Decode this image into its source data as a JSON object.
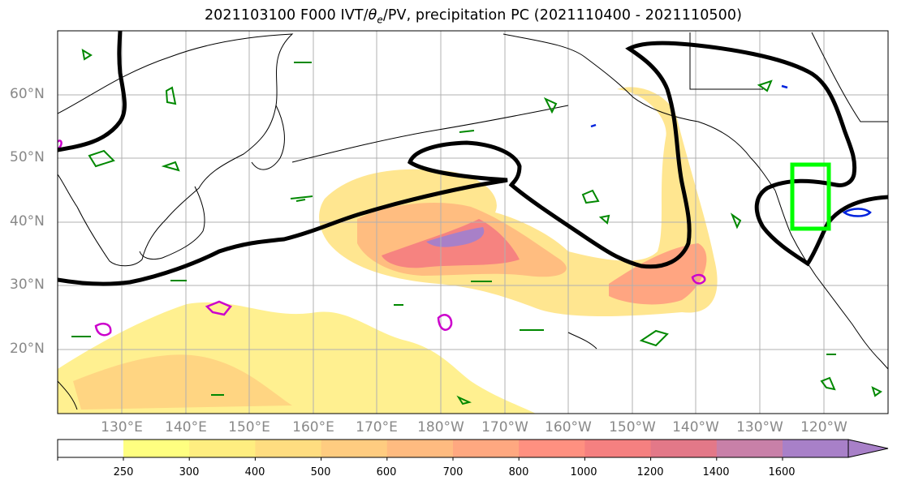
{
  "title": {
    "prefix": "2021103100 F000 IVT/",
    "theta": "θ",
    "theta_sub": "e",
    "suffix": "/PV, precipitation PC (2021110400 - 2021110500)"
  },
  "map": {
    "lat_labels": [
      "60°N",
      "50°N",
      "40°N",
      "30°N",
      "20°N"
    ],
    "lon_labels": [
      "130°E",
      "140°E",
      "150°E",
      "160°E",
      "170°E",
      "180°W",
      "170°W",
      "160°W",
      "150°W",
      "140°W",
      "130°W",
      "120°W"
    ],
    "highlight_box_color": "#00ff00",
    "jet_line_color": "#000000"
  },
  "colorbar": {
    "tick_labels": [
      "250",
      "300",
      "400",
      "500",
      "600",
      "700",
      "800",
      "1000",
      "1200",
      "1400",
      "1600"
    ],
    "colors": [
      "#ffff80",
      "#ffee80",
      "#ffdd80",
      "#ffcc80",
      "#ffbb80",
      "#ffa880",
      "#ff9080",
      "#f58080",
      "#e37888",
      "#c880a8",
      "#a880c8"
    ]
  }
}
